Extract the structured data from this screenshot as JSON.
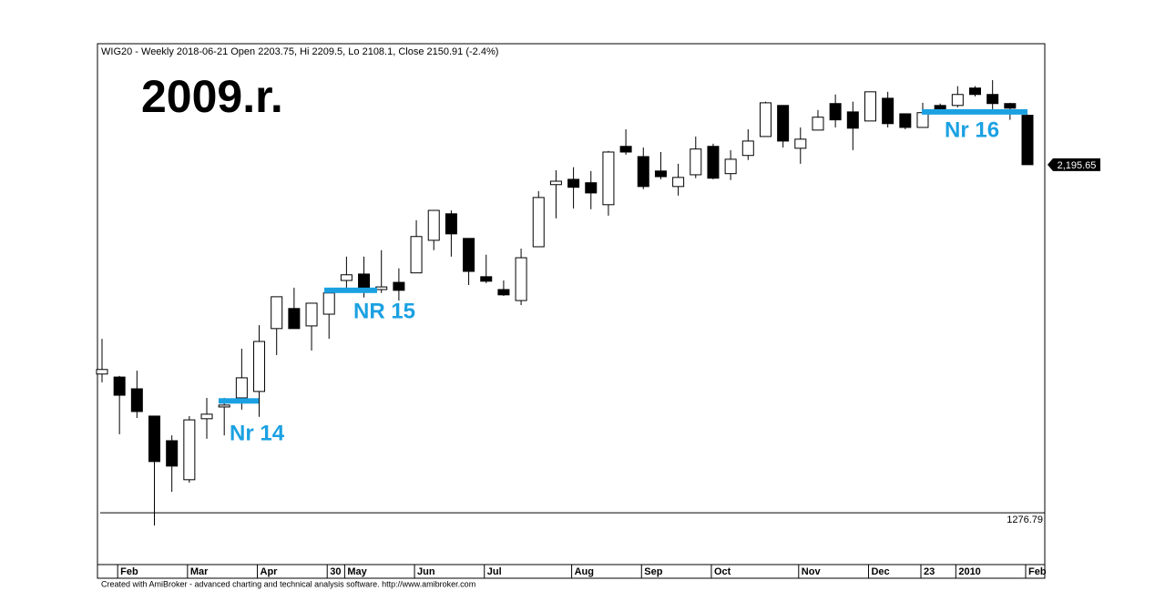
{
  "chart_data": {
    "type": "candlestick",
    "title": "WIG20 - Weekly 2018-06-21 Open 2203.75, Hi 2209.5, Lo 2108.1, Close 2150.91 (-2.4%)",
    "heading": "2009.r.",
    "footer": "Created with AmiBroker - advanced charting and technical analysis software. http://www.amibroker.com",
    "categories": [
      null,
      "Feb",
      null,
      null,
      null,
      "Mar",
      null,
      null,
      null,
      "Apr",
      null,
      null,
      null,
      "30",
      "May",
      null,
      null,
      null,
      "Jun",
      null,
      null,
      null,
      "Jul",
      null,
      null,
      null,
      null,
      "Aug",
      null,
      null,
      null,
      "Sep",
      null,
      null,
      null,
      "Oct",
      null,
      null,
      null,
      null,
      "Nov",
      null,
      null,
      null,
      "Dec",
      null,
      null,
      "23",
      null,
      "2010",
      null,
      null,
      null,
      "Feb"
    ],
    "open": [
      1643,
      1635,
      1604,
      1532,
      1467,
      1364,
      1525,
      1556,
      1580,
      1597,
      1763,
      1816,
      1770,
      1801,
      1890,
      1907,
      1866,
      1885,
      1910,
      1996,
      2066,
      2001,
      1900,
      1866,
      1837,
      1979,
      2143,
      2157,
      2148,
      2090,
      2244,
      2217,
      2179,
      2138,
      2169,
      2244,
      2172,
      2220,
      2270,
      2352,
      2239,
      2287,
      2357,
      2335,
      2311,
      2371,
      2330,
      2294,
      2352,
      2352,
      2398,
      2381,
      2357,
      2326
    ],
    "high": [
      1736,
      1638,
      1652,
      1532,
      1481,
      1532,
      1580,
      1580,
      1710,
      1772,
      1847,
      1871,
      1830,
      1866,
      1953,
      1953,
      1970,
      1922,
      2049,
      2075,
      2075,
      2001,
      1958,
      1890,
      1974,
      2126,
      2181,
      2189,
      2179,
      2232,
      2289,
      2241,
      2229,
      2198,
      2270,
      2251,
      2234,
      2289,
      2362,
      2352,
      2294,
      2340,
      2381,
      2362,
      2388,
      2388,
      2330,
      2359,
      2357,
      2403,
      2403,
      2419,
      2359,
      2328
    ],
    "low": [
      1621,
      1484,
      1527,
      1243,
      1332,
      1356,
      1472,
      1481,
      1549,
      1530,
      1693,
      1763,
      1705,
      1736,
      1866,
      1845,
      1857,
      1837,
      1910,
      1970,
      1953,
      1878,
      1883,
      1849,
      1825,
      1979,
      2054,
      2080,
      2078,
      2061,
      2222,
      2131,
      2157,
      2114,
      2160,
      2157,
      2155,
      2208,
      2270,
      2241,
      2198,
      2287,
      2294,
      2234,
      2311,
      2294,
      2289,
      2294,
      2338,
      2347,
      2376,
      2342,
      2314,
      2195.65
    ],
    "close": [
      1655,
      1587,
      1544,
      1412,
      1400,
      1522,
      1537,
      1561,
      1633,
      1729,
      1847,
      1763,
      1830,
      1857,
      1905,
      1866,
      1873,
      1864,
      2006,
      2075,
      2013,
      1914,
      1888,
      1852,
      1950,
      2109,
      2152,
      2136,
      2121,
      2229,
      2229,
      2138,
      2164,
      2162,
      2237,
      2160,
      2210,
      2258,
      2359,
      2258,
      2263,
      2321,
      2314,
      2292,
      2388,
      2304,
      2294,
      2333,
      2342,
      2381,
      2381,
      2357,
      2345,
      2195.65
    ],
    "ylim": [
      1140,
      2515
    ],
    "min_line": 1276.79,
    "last_price": {
      "value": 2195.65,
      "label": "2,195.65"
    },
    "levels": [
      {
        "label": "Nr 14",
        "value": 1572,
        "color": "#1ba1e2"
      },
      {
        "label": "NR 15",
        "value": 1864,
        "color": "#1ba1e2"
      },
      {
        "label": "Nr 16",
        "value": 2335,
        "color": "#1ba1e2"
      }
    ]
  }
}
